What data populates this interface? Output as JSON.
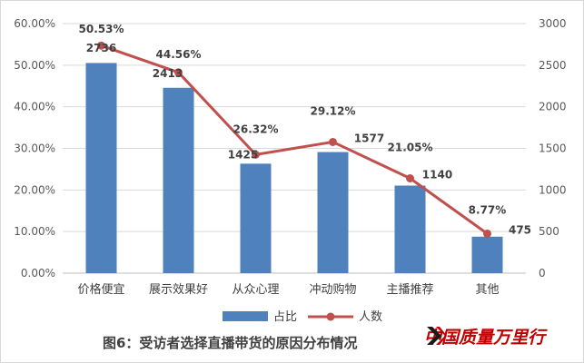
{
  "chart_data": {
    "type": "bar",
    "title": "图6：受访者选择直播带货的原因分布情况",
    "categories": [
      "价格便宜",
      "展示效果好",
      "从众心理",
      "冲动购物",
      "主播推荐",
      "其他"
    ],
    "series": [
      {
        "name": "占比",
        "type": "bar",
        "axis": "left",
        "color": "#4f81bd",
        "values": [
          50.53,
          44.56,
          26.32,
          29.12,
          21.05,
          8.77
        ],
        "labels": [
          "50.53%",
          "44.56%",
          "26.32%",
          "29.12%",
          "21.05%",
          "8.77%"
        ]
      },
      {
        "name": "人数",
        "type": "line",
        "axis": "right",
        "color": "#c0504d",
        "values": [
          2736,
          2413,
          1425,
          1577,
          1140,
          475
        ],
        "labels": [
          "2736",
          "2413",
          "1425",
          "1577",
          "1140",
          "475"
        ]
      }
    ],
    "y_left": {
      "min": 0,
      "max": 60,
      "step": 10,
      "tick_labels": [
        "0.00%",
        "10.00%",
        "20.00%",
        "30.00%",
        "40.00%",
        "50.00%",
        "60.00%"
      ]
    },
    "y_right": {
      "min": 0,
      "max": 3000,
      "step": 500,
      "tick_labels": [
        "0",
        "500",
        "1000",
        "1500",
        "2000",
        "2500",
        "3000"
      ]
    },
    "grid": true,
    "legend": "bottom"
  },
  "watermark": {
    "text": "中国质量万里行",
    "color": "#c00000"
  }
}
